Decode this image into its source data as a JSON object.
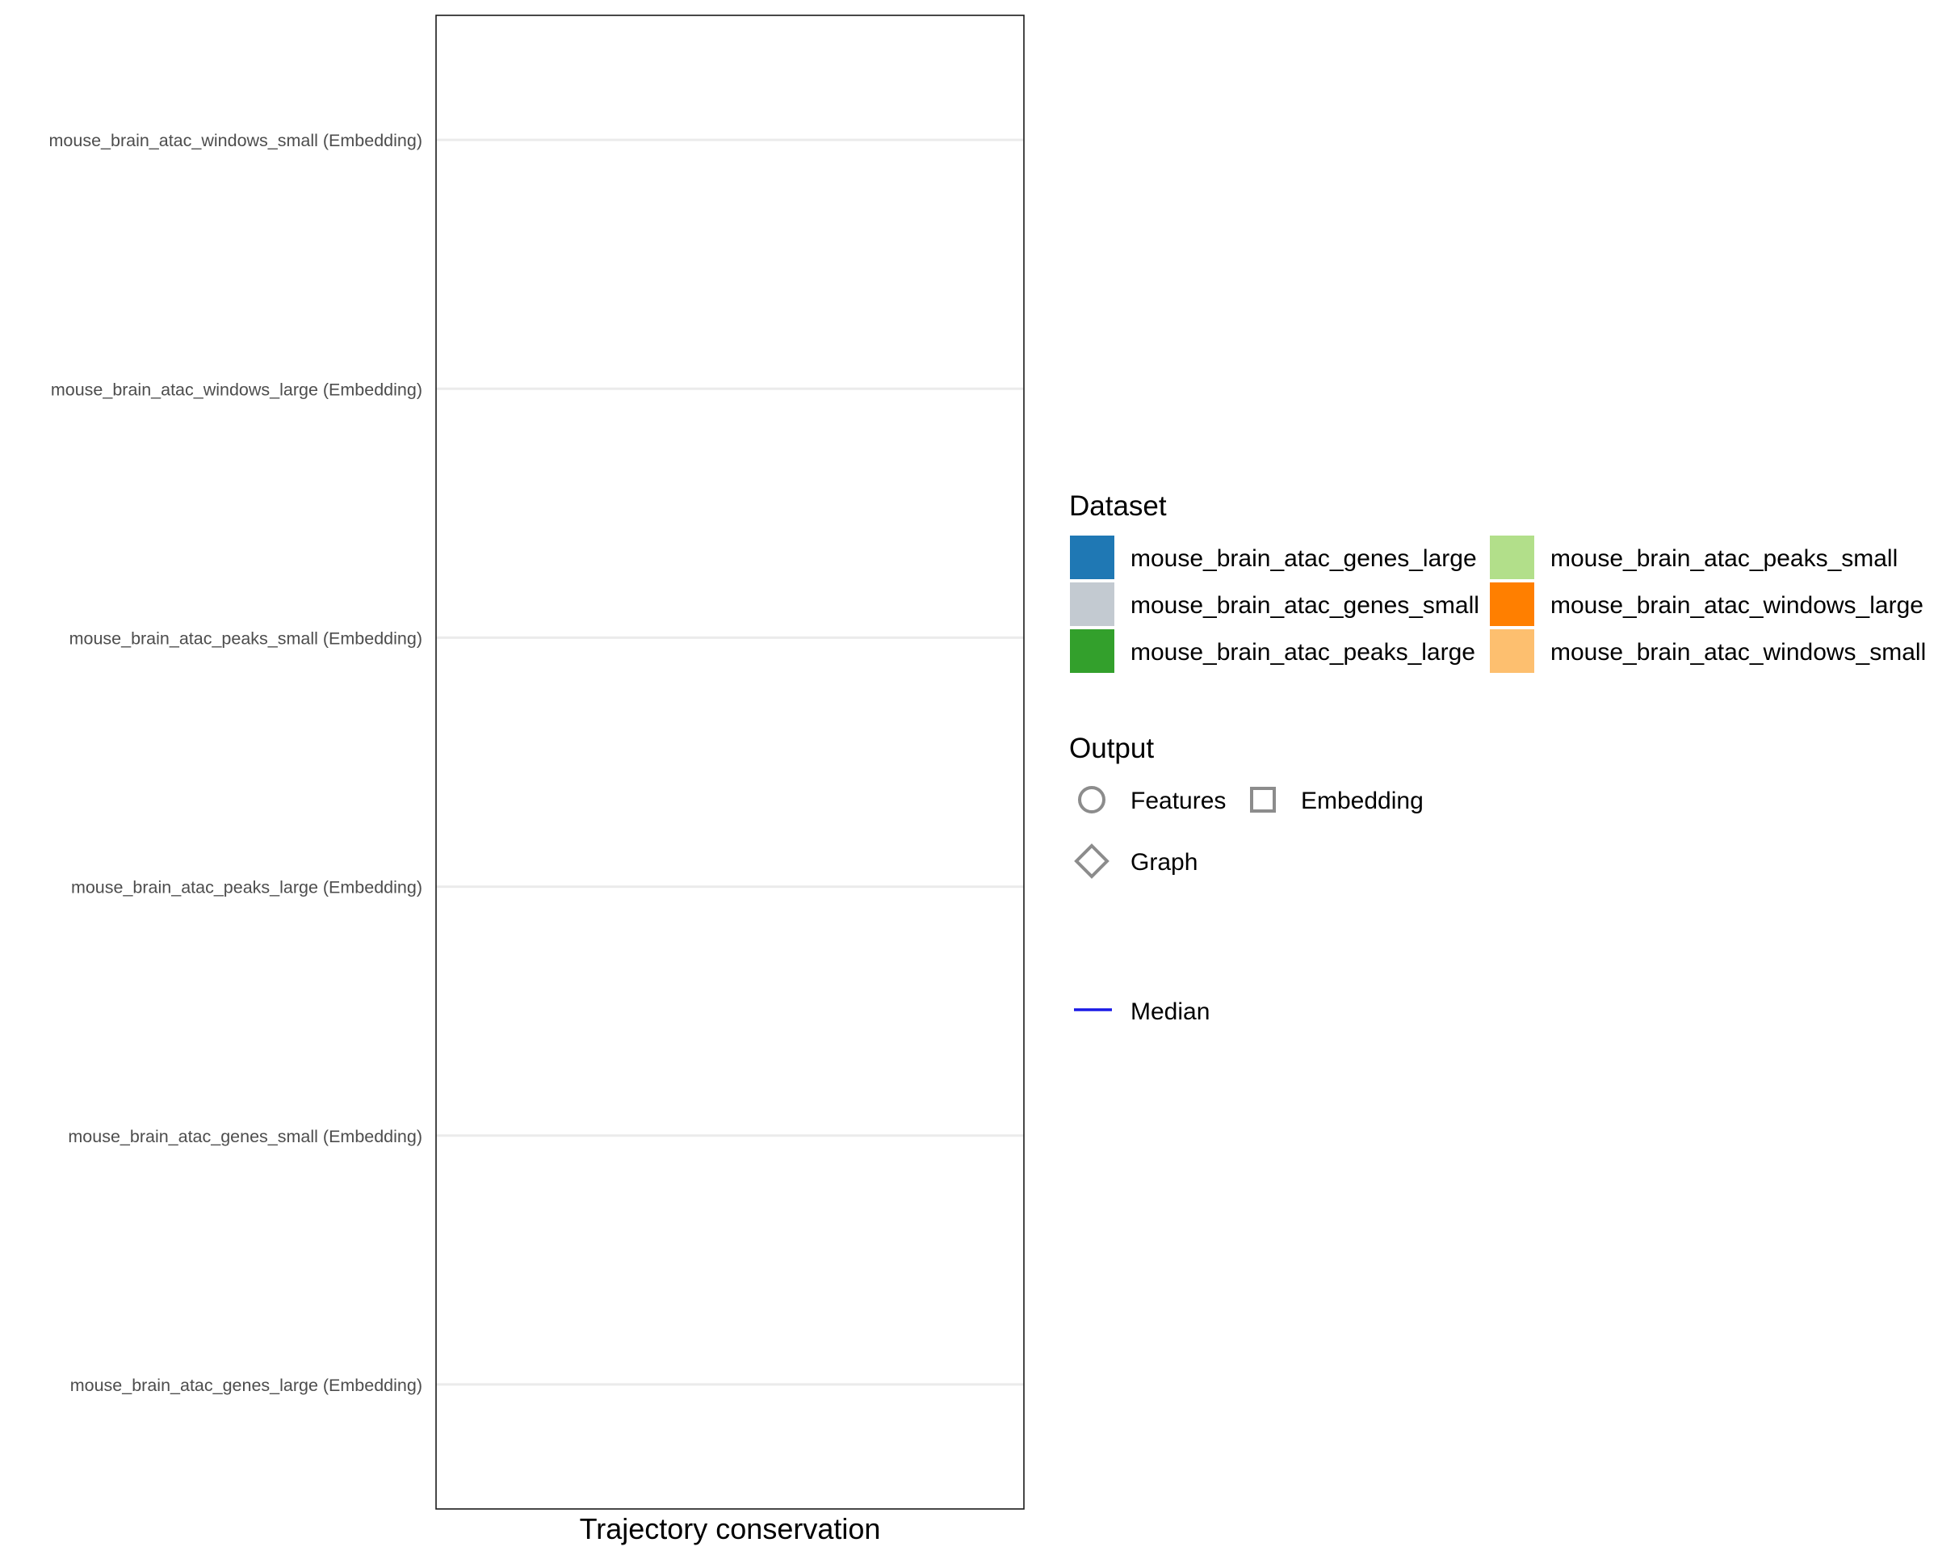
{
  "chart_data": {
    "type": "scatter",
    "title": "",
    "xlabel": "Trajectory conservation",
    "ylabel": "",
    "categories": [
      "mouse_brain_atac_genes_large (Embedding)",
      "mouse_brain_atac_genes_small (Embedding)",
      "mouse_brain_atac_peaks_large (Embedding)",
      "mouse_brain_atac_peaks_small (Embedding)",
      "mouse_brain_atac_windows_large (Embedding)",
      "mouse_brain_atac_windows_small (Embedding)"
    ],
    "series": [],
    "x_ticks_visible": false,
    "grid": "horizontal major lines",
    "panel_border": true,
    "legend_position": "right",
    "legends": {
      "dataset": {
        "title": "Dataset",
        "items": [
          {
            "label": "mouse_brain_atac_genes_large",
            "color": "#1F78B4"
          },
          {
            "label": "mouse_brain_atac_genes_small",
            "color": "#C3CAD1"
          },
          {
            "label": "mouse_brain_atac_peaks_large",
            "color": "#33A02C"
          },
          {
            "label": "mouse_brain_atac_peaks_small",
            "color": "#B2DF8A"
          },
          {
            "label": "mouse_brain_atac_windows_large",
            "color": "#FF7F00"
          },
          {
            "label": "mouse_brain_atac_windows_small",
            "color": "#FDBF6F"
          }
        ]
      },
      "output": {
        "title": "Output",
        "items": [
          {
            "label": "Features",
            "shape": "circle"
          },
          {
            "label": "Embedding",
            "shape": "square"
          },
          {
            "label": "Graph",
            "shape": "diamond"
          }
        ]
      },
      "median": {
        "label": "Median",
        "color": "#1A1AE6"
      }
    }
  }
}
